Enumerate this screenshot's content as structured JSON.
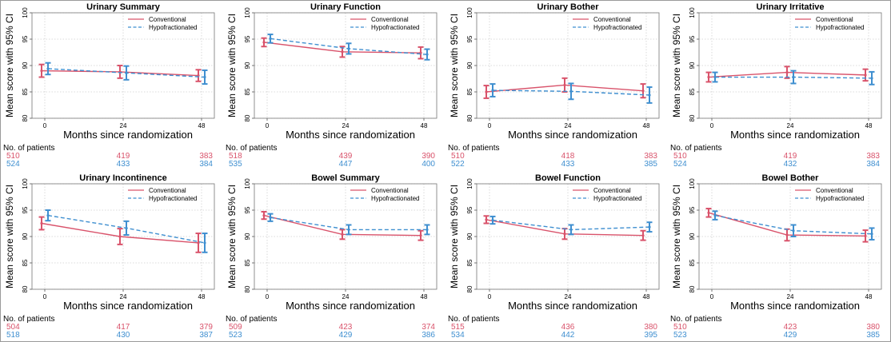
{
  "colors": {
    "conventional": "#d9536b",
    "hypofractionated": "#3f8fd0"
  },
  "common": {
    "ylabel": "Mean score with 95% CI",
    "xlabel": "Months since randomization",
    "patients_label": "No. of patients",
    "legend": [
      "Conventional",
      "Hypofractionated"
    ]
  },
  "chart_data": [
    {
      "type": "line",
      "title": "Urinary Summary",
      "x": [
        0,
        24,
        48
      ],
      "xticks": [
        "0",
        "24",
        "48"
      ],
      "ylim": [
        80,
        100
      ],
      "yticks": [
        "80",
        "85",
        "90",
        "95",
        "100"
      ],
      "grid": true,
      "legend_position": "top-right",
      "series": [
        {
          "name": "Conventional",
          "style": "solid",
          "values": [
            89.0,
            88.8,
            88.1
          ],
          "ci_low": [
            87.8,
            87.6,
            87.0
          ],
          "ci_high": [
            90.2,
            90.0,
            89.2
          ]
        },
        {
          "name": "Hypofractionated",
          "style": "dashed",
          "values": [
            89.4,
            88.6,
            87.8
          ],
          "ci_low": [
            88.3,
            87.3,
            86.5
          ],
          "ci_high": [
            90.5,
            89.9,
            89.1
          ]
        }
      ],
      "patients": [
        [
          "510",
          "419",
          "383"
        ],
        [
          "524",
          "433",
          "384"
        ]
      ]
    },
    {
      "type": "line",
      "title": "Urinary Function",
      "x": [
        0,
        24,
        48
      ],
      "xticks": [
        "0",
        "24",
        "48"
      ],
      "ylim": [
        80,
        100
      ],
      "yticks": [
        "80",
        "85",
        "90",
        "95",
        "100"
      ],
      "grid": true,
      "legend_position": "top-right",
      "series": [
        {
          "name": "Conventional",
          "style": "solid",
          "values": [
            94.4,
            92.6,
            92.4
          ],
          "ci_low": [
            93.6,
            91.6,
            91.3
          ],
          "ci_high": [
            95.2,
            93.6,
            93.5
          ]
        },
        {
          "name": "Hypofractionated",
          "style": "dashed",
          "values": [
            95.1,
            93.2,
            92.1
          ],
          "ci_low": [
            94.3,
            92.2,
            91.1
          ],
          "ci_high": [
            95.9,
            94.2,
            93.1
          ]
        }
      ],
      "patients": [
        [
          "518",
          "439",
          "390"
        ],
        [
          "535",
          "447",
          "400"
        ]
      ]
    },
    {
      "type": "line",
      "title": "Urinary Bother",
      "x": [
        0,
        24,
        48
      ],
      "xticks": [
        "0",
        "24",
        "48"
      ],
      "ylim": [
        80,
        100
      ],
      "yticks": [
        "80",
        "85",
        "90",
        "95",
        "100"
      ],
      "grid": true,
      "legend_position": "top-right",
      "series": [
        {
          "name": "Conventional",
          "style": "solid",
          "values": [
            85.0,
            86.3,
            85.2
          ],
          "ci_low": [
            83.8,
            85.0,
            83.9
          ],
          "ci_high": [
            86.2,
            87.6,
            86.5
          ]
        },
        {
          "name": "Hypofractionated",
          "style": "dashed",
          "values": [
            85.3,
            85.1,
            84.4
          ],
          "ci_low": [
            84.1,
            83.6,
            82.9
          ],
          "ci_high": [
            86.5,
            86.6,
            85.9
          ]
        }
      ],
      "patients": [
        [
          "510",
          "418",
          "383"
        ],
        [
          "522",
          "433",
          "385"
        ]
      ]
    },
    {
      "type": "line",
      "title": "Urinary Irritative",
      "x": [
        0,
        24,
        48
      ],
      "xticks": [
        "0",
        "24",
        "48"
      ],
      "ylim": [
        80,
        100
      ],
      "yticks": [
        "80",
        "85",
        "90",
        "95",
        "100"
      ],
      "grid": true,
      "legend_position": "top-right",
      "series": [
        {
          "name": "Conventional",
          "style": "solid",
          "values": [
            87.8,
            88.7,
            88.2
          ],
          "ci_low": [
            86.9,
            87.6,
            87.1
          ],
          "ci_high": [
            88.7,
            89.8,
            89.3
          ]
        },
        {
          "name": "Hypofractionated",
          "style": "dashed",
          "values": [
            87.8,
            87.8,
            87.6
          ],
          "ci_low": [
            86.9,
            86.6,
            86.4
          ],
          "ci_high": [
            88.7,
            89.0,
            88.8
          ]
        }
      ],
      "patients": [
        [
          "510",
          "419",
          "383"
        ],
        [
          "524",
          "432",
          "384"
        ]
      ]
    },
    {
      "type": "line",
      "title": "Urinary Incontinence",
      "x": [
        0,
        24,
        48
      ],
      "xticks": [
        "0",
        "24",
        "48"
      ],
      "ylim": [
        80,
        100
      ],
      "yticks": [
        "80",
        "85",
        "90",
        "95",
        "100"
      ],
      "grid": true,
      "legend_position": "top-right",
      "series": [
        {
          "name": "Conventional",
          "style": "solid",
          "values": [
            92.5,
            90.0,
            88.8
          ],
          "ci_low": [
            91.3,
            88.5,
            87.0
          ],
          "ci_high": [
            93.7,
            91.5,
            90.6
          ]
        },
        {
          "name": "Hypofractionated",
          "style": "dashed",
          "values": [
            94.0,
            91.6,
            88.8
          ],
          "ci_low": [
            93.0,
            90.3,
            87.0
          ],
          "ci_high": [
            95.0,
            92.9,
            90.6
          ]
        }
      ],
      "patients": [
        [
          "504",
          "417",
          "379"
        ],
        [
          "518",
          "430",
          "387"
        ]
      ]
    },
    {
      "type": "line",
      "title": "Bowel Summary",
      "x": [
        0,
        24,
        48
      ],
      "xticks": [
        "0",
        "24",
        "48"
      ],
      "ylim": [
        80,
        100
      ],
      "yticks": [
        "80",
        "85",
        "90",
        "95",
        "100"
      ],
      "grid": true,
      "legend_position": "top-right",
      "series": [
        {
          "name": "Conventional",
          "style": "solid",
          "values": [
            94.0,
            90.4,
            90.2
          ],
          "ci_low": [
            93.3,
            89.5,
            89.3
          ],
          "ci_high": [
            94.7,
            91.3,
            91.1
          ]
        },
        {
          "name": "Hypofractionated",
          "style": "dashed",
          "values": [
            93.6,
            91.3,
            91.3
          ],
          "ci_low": [
            92.9,
            90.4,
            90.4
          ],
          "ci_high": [
            94.3,
            92.2,
            92.2
          ]
        }
      ],
      "patients": [
        [
          "509",
          "423",
          "374"
        ],
        [
          "523",
          "429",
          "386"
        ]
      ]
    },
    {
      "type": "line",
      "title": "Bowel Function",
      "x": [
        0,
        24,
        48
      ],
      "xticks": [
        "0",
        "24",
        "48"
      ],
      "ylim": [
        80,
        100
      ],
      "yticks": [
        "80",
        "85",
        "90",
        "95",
        "100"
      ],
      "grid": true,
      "legend_position": "top-right",
      "series": [
        {
          "name": "Conventional",
          "style": "solid",
          "values": [
            93.2,
            90.5,
            90.2
          ],
          "ci_low": [
            92.5,
            89.5,
            89.3
          ],
          "ci_high": [
            93.9,
            91.5,
            91.1
          ]
        },
        {
          "name": "Hypofractionated",
          "style": "dashed",
          "values": [
            93.1,
            91.3,
            91.8
          ],
          "ci_low": [
            92.4,
            90.4,
            90.9
          ],
          "ci_high": [
            93.8,
            92.2,
            92.7
          ]
        }
      ],
      "patients": [
        [
          "515",
          "436",
          "380"
        ],
        [
          "534",
          "442",
          "395"
        ]
      ]
    },
    {
      "type": "line",
      "title": "Bowel Bother",
      "x": [
        0,
        24,
        48
      ],
      "xticks": [
        "0",
        "24",
        "48"
      ],
      "ylim": [
        80,
        100
      ],
      "yticks": [
        "80",
        "85",
        "90",
        "95",
        "100"
      ],
      "grid": true,
      "legend_position": "top-right",
      "series": [
        {
          "name": "Conventional",
          "style": "solid",
          "values": [
            94.5,
            90.3,
            90.1
          ],
          "ci_low": [
            93.7,
            89.2,
            89.0
          ],
          "ci_high": [
            95.3,
            91.4,
            91.2
          ]
        },
        {
          "name": "Hypofractionated",
          "style": "dashed",
          "values": [
            94.0,
            91.1,
            90.5
          ],
          "ci_low": [
            93.2,
            90.0,
            89.4
          ],
          "ci_high": [
            94.8,
            92.2,
            91.6
          ]
        }
      ],
      "patients": [
        [
          "510",
          "423",
          "380"
        ],
        [
          "523",
          "429",
          "385"
        ]
      ]
    }
  ]
}
